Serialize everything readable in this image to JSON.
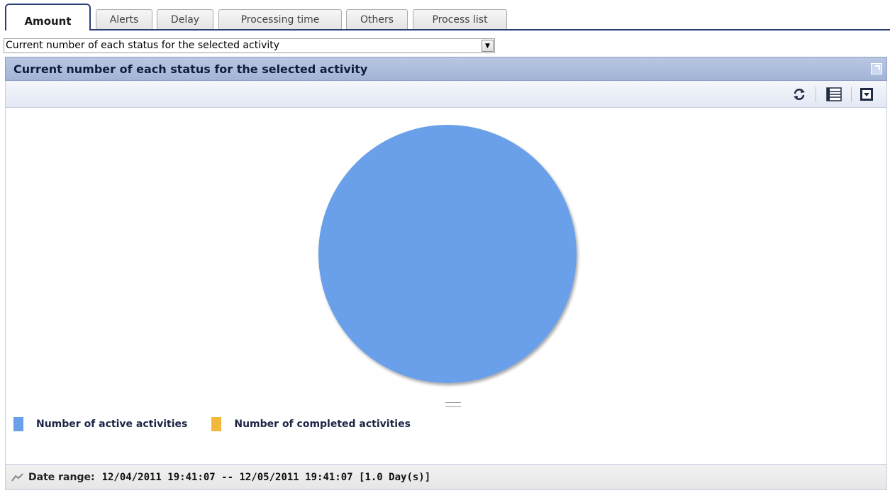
{
  "tabs": [
    {
      "label": "Amount",
      "active": true
    },
    {
      "label": "Alerts",
      "active": false
    },
    {
      "label": "Delay",
      "active": false
    },
    {
      "label": "Processing time",
      "active": false
    },
    {
      "label": "Others",
      "active": false
    },
    {
      "label": "Process list",
      "active": false
    }
  ],
  "view_select": {
    "value": "Current number of each status for the selected activity"
  },
  "panel": {
    "title": "Current number of each status for the selected activity",
    "toolbar_icons": [
      "refresh-icon",
      "list-view-icon",
      "export-icon"
    ],
    "maximize_icon": "maximize-icon"
  },
  "chart_data": {
    "type": "pie",
    "categories": [
      "Number of active activities",
      "Number of completed activities"
    ],
    "values": [
      100,
      0
    ],
    "colors": [
      "#6a9fea",
      "#f0b93c"
    ],
    "legend_position": "bottom-left"
  },
  "legend": [
    {
      "label": "Number of active activities",
      "color": "#6a9fea"
    },
    {
      "label": "Number of completed activities",
      "color": "#f0b93c"
    }
  ],
  "footer": {
    "label": "Date range:",
    "value": "12/04/2011 19:41:07 -- 12/05/2011 19:41:07 [1.0 Day(s)]",
    "icon": "date-range-icon"
  },
  "colors": {
    "accent": "#2c3f75",
    "header": "#a2b4d6"
  }
}
